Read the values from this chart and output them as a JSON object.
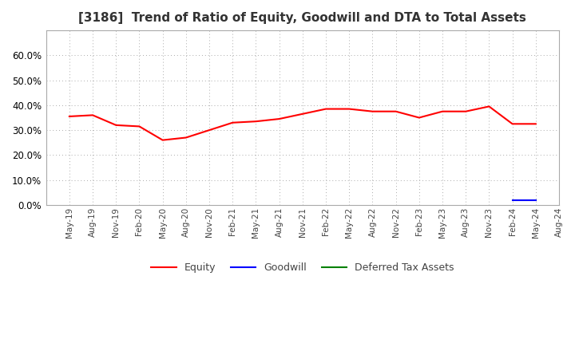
{
  "title": "[3186]  Trend of Ratio of Equity, Goodwill and DTA to Total Assets",
  "title_fontsize": 11,
  "background_color": "#ffffff",
  "plot_bg_color": "#ffffff",
  "grid_color": "#aaaaaa",
  "x_labels": [
    "May-19",
    "Aug-19",
    "Nov-19",
    "Feb-20",
    "May-20",
    "Aug-20",
    "Nov-20",
    "Feb-21",
    "May-21",
    "Aug-21",
    "Nov-21",
    "Feb-22",
    "May-22",
    "Aug-22",
    "Nov-22",
    "Feb-23",
    "May-23",
    "Aug-23",
    "Nov-23",
    "Feb-24",
    "May-24",
    "Aug-24"
  ],
  "equity": [
    35.5,
    36.0,
    32.0,
    31.5,
    26.0,
    27.0,
    30.0,
    33.0,
    33.5,
    34.5,
    36.5,
    38.5,
    38.5,
    37.5,
    37.5,
    35.0,
    37.5,
    37.5,
    39.5,
    32.5,
    32.5,
    null
  ],
  "goodwill": [
    null,
    null,
    null,
    null,
    null,
    null,
    null,
    null,
    null,
    null,
    null,
    null,
    null,
    null,
    null,
    null,
    null,
    null,
    null,
    2.0,
    2.0,
    null
  ],
  "dta": [
    null,
    null,
    null,
    null,
    null,
    null,
    null,
    null,
    null,
    null,
    null,
    null,
    null,
    null,
    null,
    null,
    null,
    null,
    null,
    null,
    null,
    null
  ],
  "equity_color": "#ff0000",
  "goodwill_color": "#0000ff",
  "dta_color": "#008000",
  "ylim": [
    0.0,
    0.7
  ],
  "yticks": [
    0.0,
    0.1,
    0.2,
    0.3,
    0.4,
    0.5,
    0.6
  ],
  "legend_labels": [
    "Equity",
    "Goodwill",
    "Deferred Tax Assets"
  ]
}
